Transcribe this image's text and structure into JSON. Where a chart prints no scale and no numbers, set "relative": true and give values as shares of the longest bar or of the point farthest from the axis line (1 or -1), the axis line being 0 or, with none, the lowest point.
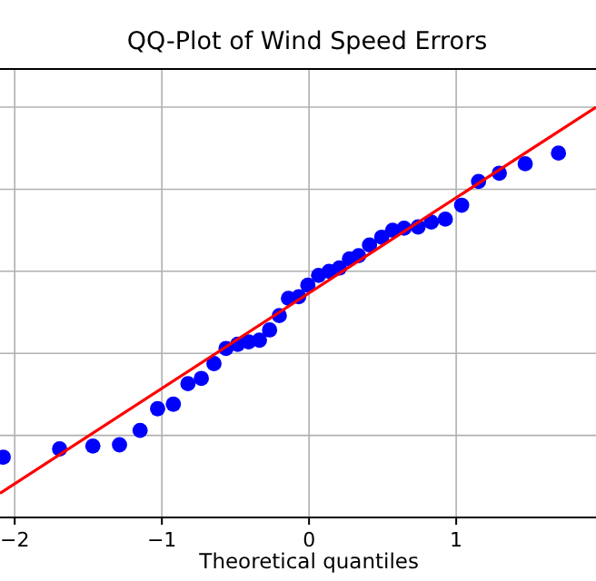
{
  "chart_data": {
    "type": "scatter",
    "title": "QQ-Plot of Wind Speed Errors",
    "xlabel": "Theoretical quantiles",
    "relative": true,
    "xlim": [
      -2.1,
      1.95
    ],
    "xticks": [
      -2,
      -1,
      0,
      1
    ],
    "grid": true,
    "series": [
      {
        "marker": "circle",
        "color": "#0000ff",
        "x": [
          -2.078,
          -1.695,
          -1.469,
          -1.288,
          -1.148,
          -1.029,
          -0.922,
          -0.823,
          -0.732,
          -0.646,
          -0.564,
          -0.485,
          -0.411,
          -0.337,
          -0.268,
          -0.202,
          -0.14,
          -0.07,
          -0.008,
          0.065,
          0.136,
          0.206,
          0.275,
          0.337,
          0.411,
          0.494,
          0.568,
          0.646,
          0.741,
          0.831,
          0.926,
          1.037,
          1.152,
          1.293,
          1.469,
          1.695
        ],
        "values": [
          0.147,
          0.167,
          0.174,
          0.177,
          0.212,
          0.265,
          0.276,
          0.326,
          0.339,
          0.375,
          0.412,
          0.422,
          0.428,
          0.432,
          0.457,
          0.492,
          0.534,
          0.538,
          0.566,
          0.59,
          0.6,
          0.608,
          0.63,
          0.638,
          0.664,
          0.683,
          0.7,
          0.705,
          0.708,
          0.72,
          0.727,
          0.761,
          0.819,
          0.839,
          0.862,
          0.888
        ]
      },
      {
        "type": "line",
        "color": "#ff0000",
        "line_style": "solid",
        "x": [
          -2.1,
          1.95
        ],
        "values": [
          0.059,
          1
        ]
      }
    ]
  }
}
